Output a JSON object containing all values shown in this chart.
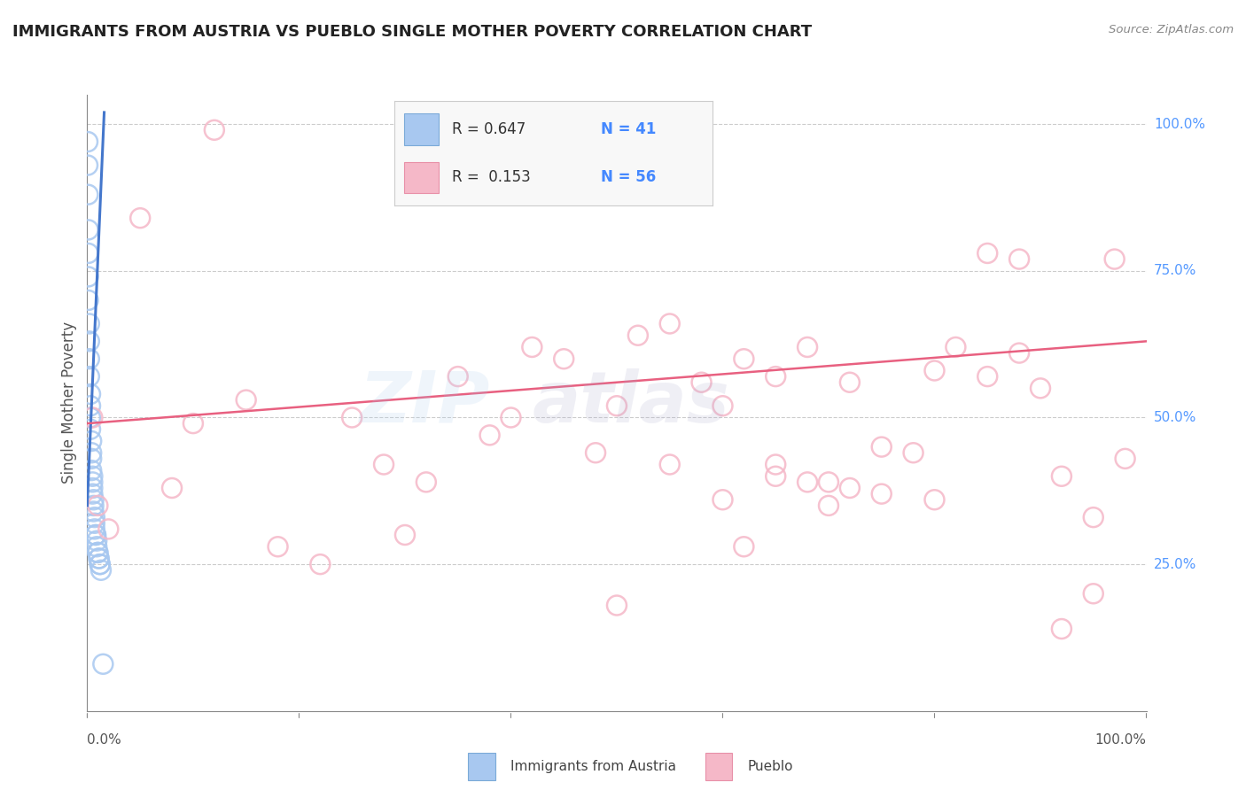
{
  "title": "IMMIGRANTS FROM AUSTRIA VS PUEBLO SINGLE MOTHER POVERTY CORRELATION CHART",
  "source": "Source: ZipAtlas.com",
  "ylabel": "Single Mother Poverty",
  "legend_blue_r": "R = 0.647",
  "legend_blue_n": "N = 41",
  "legend_pink_r": "R =  0.153",
  "legend_pink_n": "N = 56",
  "legend_blue_label": "Immigrants from Austria",
  "legend_pink_label": "Pueblo",
  "ytick_labels": [
    "25.0%",
    "50.0%",
    "75.0%",
    "100.0%"
  ],
  "ytick_values": [
    0.25,
    0.5,
    0.75,
    1.0
  ],
  "xtick_labels": [
    "0.0%",
    "100.0%"
  ],
  "xtick_values": [
    0.0,
    1.0
  ],
  "blue_scatter_x": [
    0.0005,
    0.0005,
    0.0008,
    0.001,
    0.001,
    0.001,
    0.001,
    0.002,
    0.002,
    0.002,
    0.002,
    0.003,
    0.003,
    0.003,
    0.003,
    0.004,
    0.004,
    0.004,
    0.004,
    0.005,
    0.005,
    0.005,
    0.005,
    0.006,
    0.006,
    0.006,
    0.007,
    0.007,
    0.007,
    0.008,
    0.008,
    0.009,
    0.009,
    0.01,
    0.01,
    0.011,
    0.011,
    0.012,
    0.012,
    0.013,
    0.015
  ],
  "blue_scatter_y": [
    0.97,
    0.93,
    0.88,
    0.82,
    0.78,
    0.74,
    0.7,
    0.66,
    0.63,
    0.6,
    0.57,
    0.54,
    0.52,
    0.5,
    0.48,
    0.46,
    0.44,
    0.43,
    0.41,
    0.4,
    0.39,
    0.38,
    0.37,
    0.36,
    0.35,
    0.34,
    0.33,
    0.32,
    0.31,
    0.3,
    0.3,
    0.29,
    0.28,
    0.27,
    0.27,
    0.26,
    0.26,
    0.25,
    0.25,
    0.24,
    0.08
  ],
  "pink_scatter_x": [
    0.005,
    0.01,
    0.02,
    0.05,
    0.08,
    0.1,
    0.12,
    0.15,
    0.18,
    0.22,
    0.25,
    0.28,
    0.3,
    0.32,
    0.35,
    0.38,
    0.4,
    0.42,
    0.45,
    0.48,
    0.5,
    0.52,
    0.55,
    0.58,
    0.6,
    0.62,
    0.65,
    0.68,
    0.7,
    0.72,
    0.75,
    0.78,
    0.8,
    0.82,
    0.85,
    0.88,
    0.9,
    0.92,
    0.95,
    0.97,
    0.62,
    0.65,
    0.68,
    0.72,
    0.75,
    0.8,
    0.85,
    0.88,
    0.5,
    0.55,
    0.6,
    0.65,
    0.7,
    0.92,
    0.95,
    0.98
  ],
  "pink_scatter_y": [
    0.5,
    0.35,
    0.31,
    0.84,
    0.38,
    0.49,
    0.99,
    0.53,
    0.28,
    0.25,
    0.5,
    0.42,
    0.3,
    0.39,
    0.57,
    0.47,
    0.5,
    0.62,
    0.6,
    0.44,
    0.52,
    0.64,
    0.66,
    0.56,
    0.52,
    0.28,
    0.57,
    0.62,
    0.35,
    0.56,
    0.45,
    0.44,
    0.58,
    0.62,
    0.57,
    0.77,
    0.55,
    0.4,
    0.33,
    0.77,
    0.6,
    0.4,
    0.39,
    0.38,
    0.37,
    0.36,
    0.78,
    0.61,
    0.18,
    0.42,
    0.36,
    0.42,
    0.39,
    0.14,
    0.2,
    0.43
  ],
  "blue_line_x": [
    0.0,
    0.016
  ],
  "blue_line_y": [
    0.35,
    1.02
  ],
  "pink_line_x": [
    0.0,
    1.0
  ],
  "pink_line_y": [
    0.49,
    0.63
  ],
  "blue_color": "#A8C8F0",
  "blue_edge_color": "#7BAAD8",
  "pink_color": "#F5B8C8",
  "pink_edge_color": "#E890A8",
  "blue_line_color": "#4477CC",
  "pink_line_color": "#E86080",
  "background_color": "#FFFFFF",
  "grid_color": "#CCCCCC",
  "title_color": "#222222",
  "axis_color": "#888888",
  "label_color": "#555555",
  "right_tick_color": "#5599FF",
  "watermark_zip_color": "#AACCEE",
  "watermark_atlas_color": "#AAAACC"
}
